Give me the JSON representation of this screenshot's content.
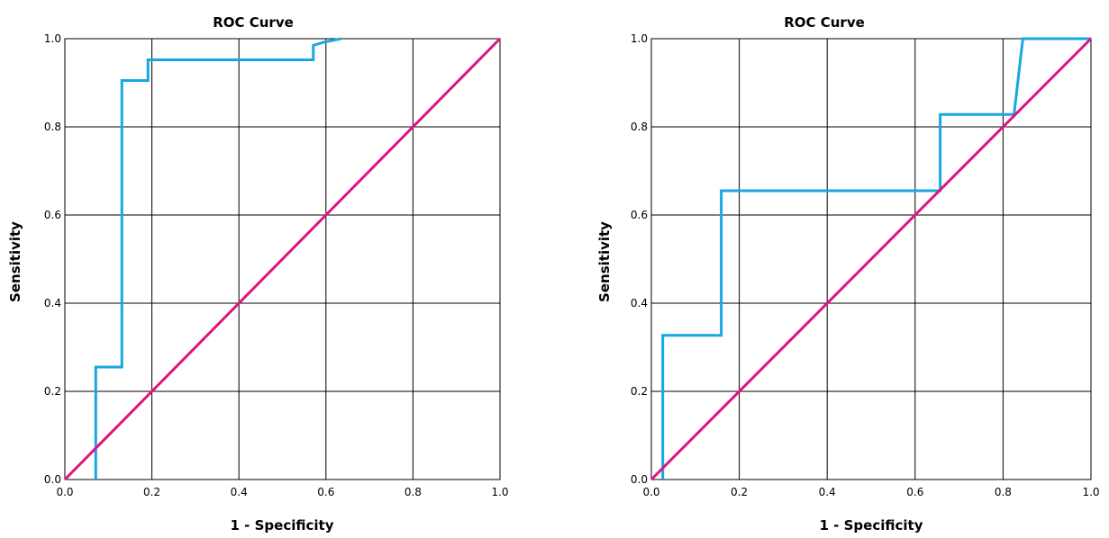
{
  "colors": {
    "roc_line": "#1aa7e1",
    "reference_line": "#e0137f",
    "grid": "#000000"
  },
  "chart_data": [
    {
      "type": "line",
      "title": "ROC Curve",
      "xlabel": "1 - Specificity",
      "ylabel": "Sensitivity",
      "xlim": [
        0,
        1
      ],
      "ylim": [
        0,
        1
      ],
      "xticks": [
        "0.0",
        "0.2",
        "0.4",
        "0.6",
        "0.8",
        "1.0"
      ],
      "yticks": [
        "0.0",
        "0.2",
        "0.4",
        "0.6",
        "0.8",
        "1.0"
      ],
      "grid": true,
      "series": [
        {
          "role": "roc",
          "x": [
            0.071,
            0.071,
            0.131,
            0.131,
            0.191,
            0.191,
            0.571,
            0.571,
            0.595,
            0.635
          ],
          "y": [
            0.0,
            0.255,
            0.255,
            0.905,
            0.905,
            0.952,
            0.952,
            0.985,
            0.992,
            1.0
          ]
        },
        {
          "role": "reference",
          "x": [
            0,
            1
          ],
          "y": [
            0,
            1
          ]
        }
      ]
    },
    {
      "type": "line",
      "title": "ROC Curve",
      "xlabel": "1 - Specificity",
      "ylabel": "Sensitivity",
      "xlim": [
        0,
        1
      ],
      "ylim": [
        0,
        1
      ],
      "xticks": [
        "0.0",
        "0.2",
        "0.4",
        "0.6",
        "0.8",
        "1.0"
      ],
      "yticks": [
        "0.0",
        "0.2",
        "0.4",
        "0.6",
        "0.8",
        "1.0"
      ],
      "grid": true,
      "series": [
        {
          "role": "roc",
          "x": [
            0.026,
            0.026,
            0.159,
            0.159,
            0.657,
            0.657,
            0.825,
            0.845,
            1.0
          ],
          "y": [
            0.0,
            0.327,
            0.327,
            0.655,
            0.655,
            0.828,
            0.828,
            1.0,
            1.0
          ]
        },
        {
          "role": "reference",
          "x": [
            0,
            1
          ],
          "y": [
            0,
            1
          ]
        }
      ]
    }
  ]
}
